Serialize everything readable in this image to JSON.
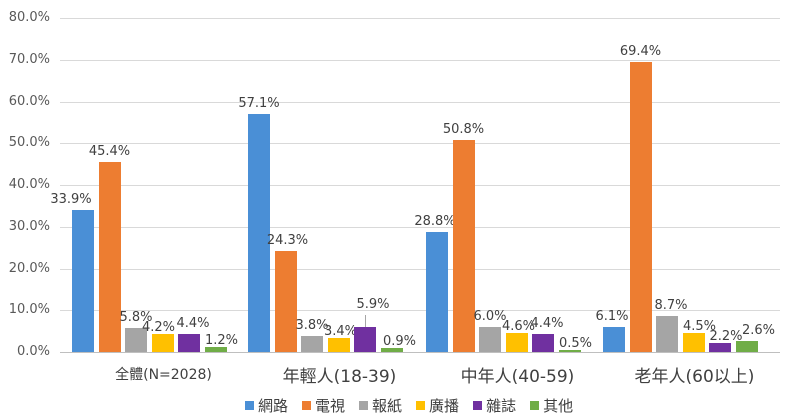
{
  "chart_data": {
    "type": "bar",
    "title": "",
    "xlabel": "",
    "ylabel": "",
    "ylim": [
      0,
      80
    ],
    "yticks": [
      "0.0%",
      "10.0%",
      "20.0%",
      "30.0%",
      "40.0%",
      "50.0%",
      "60.0%",
      "70.0%",
      "80.0%"
    ],
    "grid": true,
    "legend_position": "bottom",
    "categories": [
      "全體(N=2028)",
      "年輕人(18-39)",
      "中年人(40-59)",
      "老年人(60以上)"
    ],
    "series": [
      {
        "name": "網路",
        "color": "#4a8fd6",
        "values": [
          33.9,
          57.1,
          28.8,
          6.1
        ],
        "labels": [
          "33.9%",
          "57.1%",
          "28.8%",
          "6.1%"
        ]
      },
      {
        "name": "電視",
        "color": "#ed7d31",
        "values": [
          45.4,
          24.3,
          50.8,
          69.4
        ],
        "labels": [
          "45.4%",
          "24.3%",
          "50.8%",
          "69.4%"
        ]
      },
      {
        "name": "報紙",
        "color": "#a5a5a5",
        "values": [
          5.8,
          3.8,
          6.0,
          8.7
        ],
        "labels": [
          "5.8%",
          "3.8%",
          "6.0%",
          "8.7%"
        ]
      },
      {
        "name": "廣播",
        "color": "#ffc000",
        "values": [
          4.2,
          3.4,
          4.6,
          4.5
        ],
        "labels": [
          "4.2%",
          "3.4%",
          "4.6%",
          "4.5%"
        ]
      },
      {
        "name": "雜誌",
        "color": "#7030a0",
        "values": [
          4.4,
          5.9,
          4.4,
          2.2
        ],
        "labels": [
          "4.4%",
          "5.9%",
          "4.4%",
          "2.2%"
        ]
      },
      {
        "name": "其他",
        "color": "#70ad47",
        "values": [
          1.2,
          0.9,
          0.5,
          2.6
        ],
        "labels": [
          "1.2%",
          "0.9%",
          "0.5%",
          "2.6%"
        ]
      }
    ]
  }
}
